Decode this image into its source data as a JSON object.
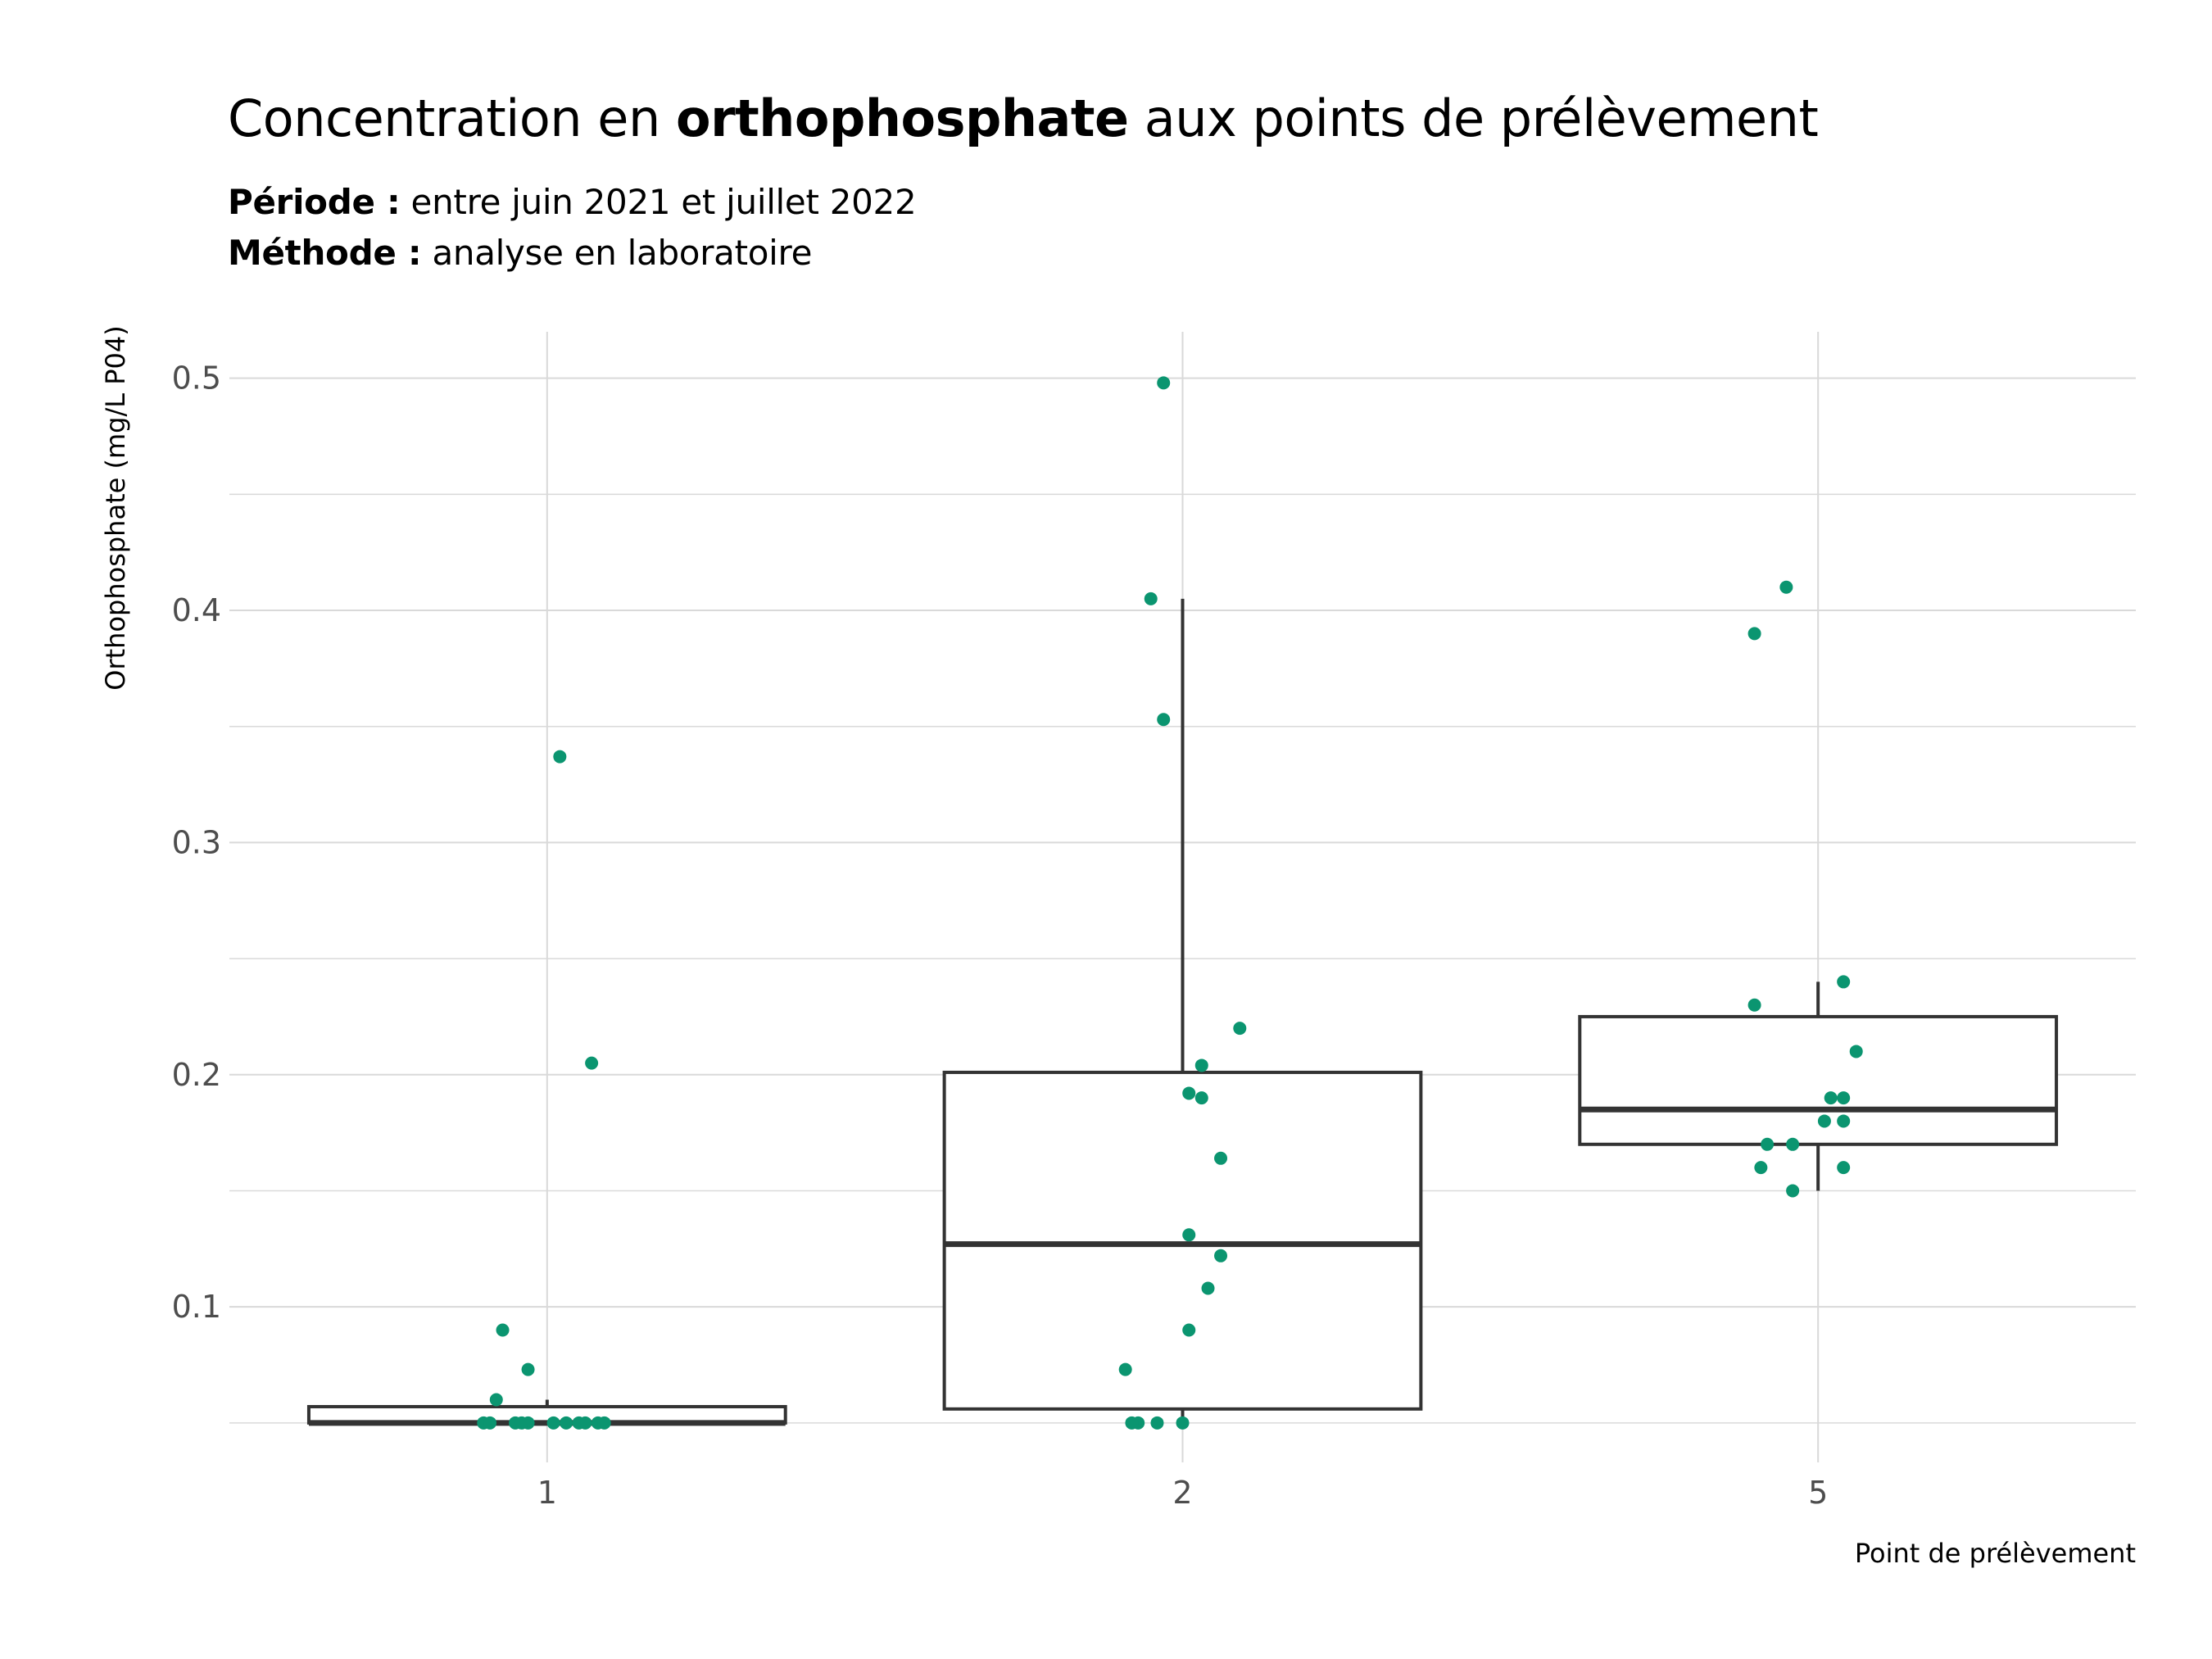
{
  "title": {
    "prefix": "Concentration en ",
    "bold": "orthophosphate",
    "suffix": " aux points de prélèvement"
  },
  "subtitle": {
    "line1_label": "Période :",
    "line1_text": " entre juin 2021 et juillet 2022",
    "line2_label": "Méthode :",
    "line2_text": " analyse en laboratoire"
  },
  "colors": {
    "point": "#0b9570",
    "box": "#333333",
    "grid": "#d9d9d9"
  },
  "chart_data": {
    "type": "boxplot",
    "xlabel": "Point de prélèvement",
    "ylabel": "Orthophosphate (mg/L P04)",
    "categories": [
      "1",
      "2",
      "5"
    ],
    "ylim": [
      0.033,
      0.52
    ],
    "yticks": [
      0.1,
      0.2,
      0.3,
      0.4,
      0.5
    ],
    "ytick_labels": [
      "0.1",
      "0.2",
      "0.3",
      "0.4",
      "0.5"
    ],
    "grid": true,
    "boxes": [
      {
        "category": "1",
        "whisker_low": 0.05,
        "q1": 0.05,
        "median": 0.05,
        "q3": 0.057,
        "whisker_high": 0.06
      },
      {
        "category": "2",
        "whisker_low": 0.05,
        "q1": 0.056,
        "median": 0.127,
        "q3": 0.201,
        "whisker_high": 0.405
      },
      {
        "category": "5",
        "whisker_low": 0.15,
        "q1": 0.17,
        "median": 0.185,
        "q3": 0.225,
        "whisker_high": 0.24
      }
    ],
    "points": [
      {
        "category": "1",
        "values": [
          0.337,
          0.205,
          0.09,
          0.073,
          0.06,
          0.05,
          0.05,
          0.05,
          0.05,
          0.05,
          0.05,
          0.05,
          0.05,
          0.05,
          0.05,
          0.05
        ]
      },
      {
        "category": "2",
        "values": [
          0.498,
          0.405,
          0.353,
          0.22,
          0.204,
          0.192,
          0.19,
          0.164,
          0.131,
          0.122,
          0.108,
          0.09,
          0.073,
          0.05,
          0.05,
          0.05,
          0.05
        ]
      },
      {
        "category": "5",
        "values": [
          0.41,
          0.39,
          0.24,
          0.23,
          0.21,
          0.19,
          0.19,
          0.18,
          0.18,
          0.17,
          0.17,
          0.16,
          0.16,
          0.15
        ]
      }
    ]
  }
}
